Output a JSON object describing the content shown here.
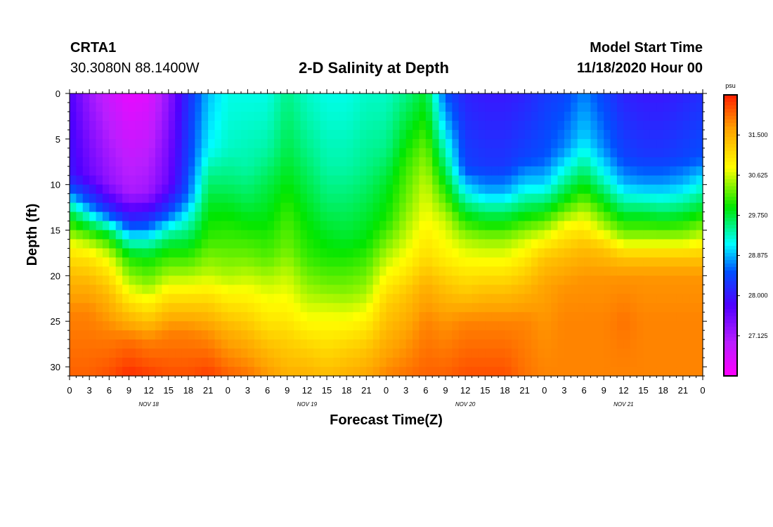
{
  "header": {
    "station_id": "CRTA1",
    "coordinates": "30.3080N 88.1400W",
    "title": "2-D Salinity at Depth",
    "start_label": "Model Start Time",
    "start_time": "11/18/2020 Hour 00"
  },
  "chart_data": {
    "type": "heatmap",
    "title": "2-D Salinity at Depth",
    "xlabel": "Forecast Time(Z)",
    "ylabel": "Depth (ft)",
    "x_range_hours": [
      0,
      96
    ],
    "ylim": [
      0,
      31
    ],
    "y_inverted": true,
    "y_ticks": [
      0,
      5,
      10,
      15,
      20,
      25,
      30
    ],
    "x_tick_labels": [
      "0",
      "3",
      "6",
      "9",
      "12",
      "15",
      "18",
      "21",
      "0",
      "3",
      "6",
      "9",
      "12",
      "15",
      "18",
      "21",
      "0",
      "3",
      "6",
      "9",
      "12",
      "15",
      "18",
      "21",
      "0",
      "3",
      "6",
      "9",
      "12",
      "15",
      "18",
      "21",
      "0"
    ],
    "day_labels": [
      {
        "hour": 12,
        "label": "NOV 18"
      },
      {
        "hour": 36,
        "label": "NOV 19"
      },
      {
        "hour": 60,
        "label": "NOV 20"
      },
      {
        "hour": 84,
        "label": "NOV 21"
      }
    ],
    "colorbar": {
      "unit": "psu",
      "min": 26.25,
      "max": 32.375,
      "tick_values": [
        31.5,
        30.625,
        29.75,
        28.875,
        28.0,
        27.125
      ],
      "tick_labels": [
        "31.500",
        "30.625",
        "29.750",
        "28.875",
        "28.000",
        "27.125"
      ]
    },
    "profiles": [
      {
        "hour": 0,
        "depth": [
          0,
          9,
          11,
          13,
          15,
          17,
          20,
          24,
          31
        ],
        "salinity": [
          27.8,
          28.0,
          28.7,
          29.7,
          30.3,
          30.9,
          31.4,
          31.8,
          32.0
        ]
      },
      {
        "hour": 3,
        "depth": [
          0,
          9,
          12,
          14,
          16,
          18,
          21,
          24,
          31
        ],
        "salinity": [
          27.2,
          27.6,
          28.5,
          29.5,
          30.4,
          31.0,
          31.5,
          31.8,
          32.0
        ]
      },
      {
        "hour": 6,
        "depth": [
          0,
          10,
          13,
          15,
          17,
          19,
          22,
          26,
          31
        ],
        "salinity": [
          26.8,
          27.3,
          28.3,
          29.6,
          30.4,
          30.9,
          31.4,
          31.8,
          32.1
        ]
      },
      {
        "hour": 9,
        "depth": [
          0,
          11,
          14,
          16,
          18,
          21,
          24,
          27,
          31
        ],
        "salinity": [
          26.5,
          27.1,
          28.2,
          29.2,
          30.0,
          30.6,
          31.3,
          31.9,
          32.3
        ]
      },
      {
        "hour": 12,
        "depth": [
          0,
          11,
          14,
          16,
          18,
          21,
          24,
          27,
          31
        ],
        "salinity": [
          26.6,
          27.2,
          28.3,
          29.2,
          29.9,
          30.4,
          31.1,
          31.8,
          32.2
        ]
      },
      {
        "hour": 15,
        "depth": [
          0,
          10,
          13,
          15,
          17,
          20,
          23,
          26,
          31
        ],
        "salinity": [
          27.3,
          27.6,
          28.4,
          29.3,
          29.9,
          30.5,
          31.2,
          31.8,
          32.1
        ]
      },
      {
        "hour": 18,
        "depth": [
          0,
          8,
          11,
          14,
          17,
          20,
          23,
          26,
          31
        ],
        "salinity": [
          28.2,
          28.4,
          28.6,
          29.3,
          29.9,
          30.5,
          31.2,
          31.8,
          32.1
        ]
      },
      {
        "hour": 21,
        "depth": [
          0,
          6,
          9,
          12,
          16,
          20,
          23,
          26,
          31
        ],
        "salinity": [
          28.9,
          29.1,
          29.5,
          29.8,
          30.1,
          30.6,
          31.2,
          31.7,
          32.2
        ]
      },
      {
        "hour": 24,
        "depth": [
          0,
          6,
          10,
          13,
          17,
          20,
          23,
          26,
          31
        ],
        "salinity": [
          29.2,
          29.3,
          29.6,
          29.9,
          30.2,
          30.5,
          31.0,
          31.5,
          32.0
        ]
      },
      {
        "hour": 27,
        "depth": [
          0,
          8,
          12,
          15,
          18,
          21,
          24,
          27,
          31
        ],
        "salinity": [
          29.2,
          29.4,
          29.7,
          30.0,
          30.3,
          30.7,
          31.1,
          31.5,
          31.9
        ]
      },
      {
        "hour": 30,
        "depth": [
          0,
          6,
          10,
          14,
          18,
          21,
          25,
          28,
          31
        ],
        "salinity": [
          29.2,
          29.4,
          29.7,
          29.9,
          30.2,
          30.6,
          31.0,
          31.4,
          31.7
        ]
      },
      {
        "hour": 33,
        "depth": [
          0,
          6,
          10,
          13,
          17,
          20,
          24,
          27,
          31
        ],
        "salinity": [
          29.5,
          29.7,
          29.9,
          30.1,
          30.3,
          30.6,
          30.9,
          31.2,
          31.5
        ]
      },
      {
        "hour": 36,
        "depth": [
          0,
          6,
          10,
          14,
          18,
          21,
          25,
          28,
          31
        ],
        "salinity": [
          29.3,
          29.5,
          29.7,
          29.9,
          30.1,
          30.4,
          30.8,
          31.2,
          31.5
        ]
      },
      {
        "hour": 39,
        "depth": [
          0,
          8,
          12,
          15,
          18,
          21,
          24,
          28,
          31
        ],
        "salinity": [
          29.2,
          29.4,
          29.6,
          29.8,
          30.0,
          30.3,
          30.7,
          31.1,
          31.4
        ]
      },
      {
        "hour": 42,
        "depth": [
          0,
          8,
          12,
          16,
          19,
          22,
          25,
          28,
          31
        ],
        "salinity": [
          29.2,
          29.4,
          29.6,
          29.8,
          30.1,
          30.4,
          30.8,
          31.2,
          31.5
        ]
      },
      {
        "hour": 45,
        "depth": [
          0,
          8,
          12,
          16,
          19,
          22,
          25,
          28,
          31
        ],
        "salinity": [
          29.3,
          29.5,
          29.7,
          29.9,
          30.2,
          30.5,
          30.9,
          31.3,
          31.6
        ]
      },
      {
        "hour": 48,
        "depth": [
          0,
          6,
          10,
          14,
          17,
          20,
          23,
          27,
          31
        ],
        "salinity": [
          29.3,
          29.5,
          29.8,
          30.0,
          30.4,
          30.8,
          31.2,
          31.5,
          31.8
        ]
      },
      {
        "hour": 51,
        "depth": [
          0,
          4,
          8,
          12,
          16,
          19,
          22,
          26,
          31
        ],
        "salinity": [
          29.5,
          29.8,
          30.1,
          30.3,
          30.6,
          30.9,
          31.3,
          31.6,
          31.9
        ]
      },
      {
        "hour": 54,
        "depth": [
          0,
          3,
          6,
          10,
          14,
          18,
          21,
          25,
          31
        ],
        "salinity": [
          29.8,
          30.0,
          30.3,
          30.6,
          30.8,
          31.1,
          31.5,
          31.8,
          32.0
        ]
      },
      {
        "hour": 57,
        "depth": [
          0,
          4,
          8,
          11,
          14,
          18,
          21,
          25,
          31
        ],
        "salinity": [
          28.5,
          29.0,
          29.6,
          30.1,
          30.6,
          30.9,
          31.3,
          31.7,
          32.0
        ]
      },
      {
        "hour": 60,
        "depth": [
          0,
          8,
          11,
          13,
          16,
          19,
          22,
          25,
          31
        ],
        "salinity": [
          28.1,
          28.4,
          29.2,
          29.8,
          30.5,
          30.9,
          31.3,
          31.8,
          32.1
        ]
      },
      {
        "hour": 63,
        "depth": [
          0,
          8,
          11,
          13,
          16,
          19,
          22,
          25,
          31
        ],
        "salinity": [
          28.0,
          28.3,
          28.9,
          29.6,
          30.4,
          30.9,
          31.4,
          31.8,
          32.1
        ]
      },
      {
        "hour": 66,
        "depth": [
          0,
          8,
          11,
          13,
          16,
          19,
          22,
          25,
          31
        ],
        "salinity": [
          28.0,
          28.3,
          28.9,
          29.6,
          30.4,
          30.9,
          31.4,
          31.8,
          32.1
        ]
      },
      {
        "hour": 69,
        "depth": [
          0,
          7,
          10,
          13,
          16,
          19,
          22,
          25,
          31
        ],
        "salinity": [
          28.1,
          28.4,
          29.0,
          29.8,
          30.6,
          31.1,
          31.5,
          31.8,
          31.9
        ]
      },
      {
        "hour": 72,
        "depth": [
          0,
          7,
          10,
          13,
          16,
          18,
          21,
          25,
          31
        ],
        "salinity": [
          28.3,
          28.5,
          29.0,
          29.9,
          30.8,
          31.3,
          31.6,
          31.7,
          31.8
        ]
      },
      {
        "hour": 75,
        "depth": [
          0,
          6,
          9,
          12,
          15,
          18,
          21,
          25,
          31
        ],
        "salinity": [
          28.4,
          28.7,
          29.3,
          30.0,
          30.9,
          31.4,
          31.7,
          31.8,
          31.8
        ]
      },
      {
        "hour": 78,
        "depth": [
          0,
          5,
          8,
          11,
          14,
          17,
          20,
          25,
          31
        ],
        "salinity": [
          28.7,
          29.0,
          29.5,
          30.1,
          30.8,
          31.4,
          31.7,
          31.8,
          31.8
        ]
      },
      {
        "hour": 81,
        "depth": [
          0,
          6,
          9,
          12,
          15,
          17,
          20,
          25,
          31
        ],
        "salinity": [
          28.4,
          28.7,
          29.2,
          29.9,
          30.6,
          31.3,
          31.7,
          31.8,
          31.8
        ]
      },
      {
        "hour": 84,
        "depth": [
          0,
          7,
          10,
          13,
          16,
          18,
          20,
          25,
          31
        ],
        "salinity": [
          28.1,
          28.4,
          28.9,
          29.7,
          30.5,
          31.3,
          31.7,
          31.9,
          31.8
        ]
      },
      {
        "hour": 87,
        "depth": [
          0,
          7,
          10,
          13,
          16,
          18,
          20,
          25,
          31
        ],
        "salinity": [
          28.0,
          28.3,
          28.8,
          29.7,
          30.5,
          31.3,
          31.7,
          31.8,
          31.8
        ]
      },
      {
        "hour": 90,
        "depth": [
          0,
          7,
          10,
          13,
          16,
          18,
          20,
          25,
          31
        ],
        "salinity": [
          28.0,
          28.3,
          28.8,
          29.6,
          30.5,
          31.3,
          31.7,
          31.8,
          31.8
        ]
      },
      {
        "hour": 93,
        "depth": [
          0,
          7,
          10,
          13,
          16,
          18,
          20,
          25,
          31
        ],
        "salinity": [
          28.1,
          28.4,
          28.9,
          29.7,
          30.5,
          31.3,
          31.7,
          31.8,
          31.8
        ]
      },
      {
        "hour": 96,
        "depth": [
          0,
          7,
          10,
          13,
          16,
          18,
          20,
          25,
          31
        ],
        "salinity": [
          28.2,
          28.5,
          29.2,
          29.9,
          30.7,
          31.3,
          31.7,
          31.8,
          31.8
        ]
      }
    ]
  }
}
